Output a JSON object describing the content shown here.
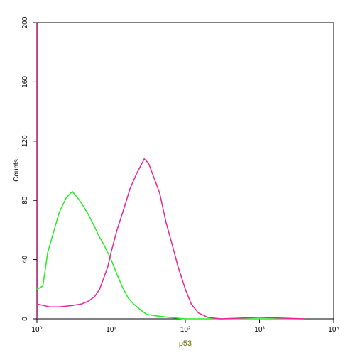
{
  "chart_data": {
    "type": "line",
    "x_label": "p53",
    "y_label": "Counts",
    "xlog": true,
    "xlim": [
      1,
      10000
    ],
    "xticks": [
      {
        "value": 1,
        "label": "10⁰"
      },
      {
        "value": 10,
        "label": "10¹"
      },
      {
        "value": 100,
        "label": "10²"
      },
      {
        "value": 1000,
        "label": "10³"
      },
      {
        "value": 10000,
        "label": "10⁴"
      }
    ],
    "ylim": [
      0,
      200
    ],
    "yticks": [
      0,
      40,
      80,
      120,
      160,
      200
    ],
    "series": [
      {
        "color": "#22ee22",
        "x": [
          1,
          1.2,
          1.4,
          1.6,
          2,
          2.5,
          3,
          3.5,
          4,
          5,
          6,
          7,
          8,
          10,
          12,
          14,
          17,
          20,
          25,
          30,
          40,
          60,
          100,
          1000,
          4000
        ],
        "values": [
          20,
          22,
          45,
          55,
          72,
          82,
          86,
          82,
          78,
          70,
          62,
          55,
          50,
          40,
          30,
          22,
          14,
          10,
          6,
          3,
          2,
          1,
          0,
          0,
          0
        ]
      },
      {
        "color": "#ee2299",
        "x": [
          1,
          1.5,
          2,
          3,
          4,
          5,
          6,
          7,
          8,
          9,
          10,
          12,
          15,
          18,
          22,
          28,
          32,
          38,
          45,
          55,
          65,
          80,
          100,
          120,
          150,
          200,
          300,
          1000,
          4000
        ],
        "values": [
          10,
          8,
          8,
          9,
          10,
          12,
          15,
          20,
          28,
          35,
          45,
          60,
          75,
          88,
          98,
          108,
          105,
          95,
          85,
          65,
          52,
          35,
          20,
          10,
          4,
          1,
          0,
          1,
          0
        ]
      }
    ]
  }
}
